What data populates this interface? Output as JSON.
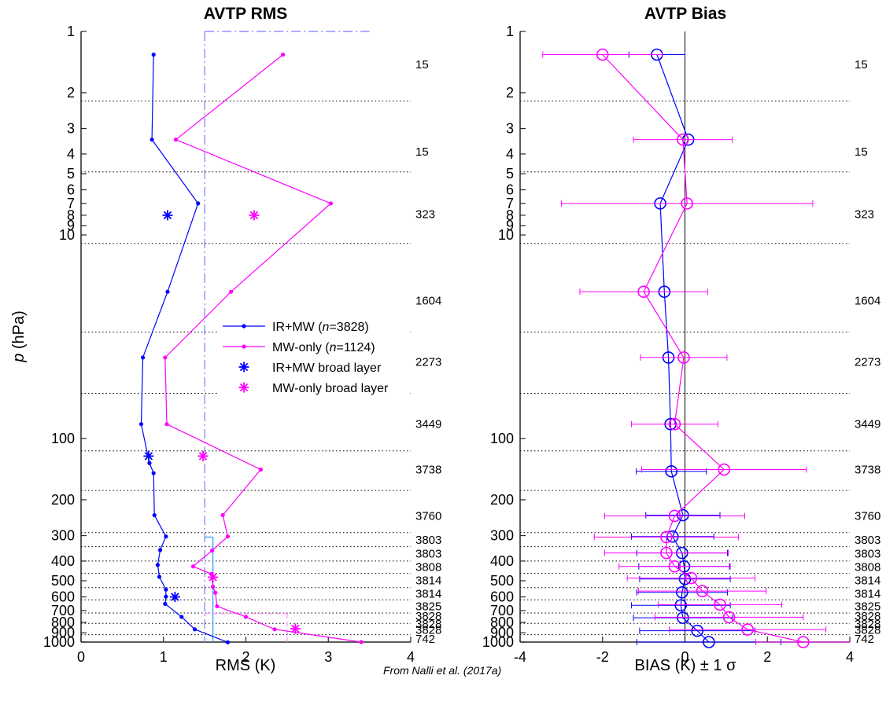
{
  "figure": {
    "credit": "From Nalli et al. (2017a)",
    "ylabel": "p (hPa)",
    "ylabel_italic": "p",
    "ylabel_rest": " (hPa)"
  },
  "chart_data": [
    {
      "type": "line",
      "title": "AVTP RMS",
      "xlabel": "RMS (K)",
      "ylabel": "p (hPa)",
      "xlim": [
        0,
        4
      ],
      "ylim": [
        1000,
        1
      ],
      "yscale": "log",
      "xticks": [
        "0",
        "1",
        "2",
        "3",
        "4"
      ],
      "yticks": [
        "1",
        "2",
        "3",
        "4",
        "5",
        "6",
        "7",
        "8",
        "9",
        "10",
        "100",
        "200",
        "300",
        "400",
        "500",
        "600",
        "700",
        "800",
        "900",
        "1000"
      ],
      "layer_boundaries": [
        2.2,
        4.9,
        11,
        30,
        60,
        115,
        180,
        290,
        340,
        400,
        460,
        540,
        620,
        720,
        810,
        920
      ],
      "layer_counts": [
        {
          "p": 1.45,
          "n": "15"
        },
        {
          "p": 3.9,
          "n": "15"
        },
        {
          "p": 7.9,
          "n": "323"
        },
        {
          "p": 21,
          "n": "1604"
        },
        {
          "p": 42,
          "n": "2273"
        },
        {
          "p": 85,
          "n": "3449"
        },
        {
          "p": 142,
          "n": "3738"
        },
        {
          "p": 240,
          "n": "3760"
        },
        {
          "p": 315,
          "n": "3803"
        },
        {
          "p": 368,
          "n": "3803"
        },
        {
          "p": 428,
          "n": "3808"
        },
        {
          "p": 498,
          "n": "3814"
        },
        {
          "p": 578,
          "n": "3814"
        },
        {
          "p": 668,
          "n": "3825"
        },
        {
          "p": 745,
          "n": "3828"
        },
        {
          "p": 815,
          "n": "3828"
        },
        {
          "p": 870,
          "n": "3828"
        },
        {
          "p": 965,
          "n": "742"
        }
      ],
      "series": [
        {
          "name": "IR+MW (n=3828)",
          "color": "#0000ff",
          "marker": "dot",
          "points": [
            [
              0.88,
              1.3
            ],
            [
              0.86,
              3.4
            ],
            [
              1.42,
              7.0
            ],
            [
              1.05,
              19
            ],
            [
              0.75,
              40
            ],
            [
              0.73,
              85
            ],
            [
              0.83,
              132
            ],
            [
              0.88,
              148
            ],
            [
              0.89,
              238
            ],
            [
              1.03,
              303
            ],
            [
              0.96,
              353
            ],
            [
              0.93,
              418
            ],
            [
              0.95,
              478
            ],
            [
              1.03,
              552
            ],
            [
              1.03,
              598
            ],
            [
              1.02,
              649
            ],
            [
              1.22,
              752
            ],
            [
              1.38,
              866
            ],
            [
              1.78,
              1003
            ]
          ]
        },
        {
          "name": "MW-only (n=1124)",
          "color": "#ff00ff",
          "marker": "dot",
          "points": [
            [
              2.45,
              1.3
            ],
            [
              1.15,
              3.4
            ],
            [
              3.03,
              7.0
            ],
            [
              1.82,
              19
            ],
            [
              1.02,
              40
            ],
            [
              1.04,
              85
            ],
            [
              2.18,
              142
            ],
            [
              1.72,
              238
            ],
            [
              1.78,
              303
            ],
            [
              1.59,
              355
            ],
            [
              1.36,
              425
            ],
            [
              1.58,
              463
            ],
            [
              1.6,
              535
            ],
            [
              1.63,
              572
            ],
            [
              1.65,
              667
            ],
            [
              2.0,
              752
            ],
            [
              2.35,
              866
            ],
            [
              3.4,
              1000
            ]
          ]
        },
        {
          "name": "IR+MW broad layer",
          "color": "#0000ff",
          "marker": "asterisk",
          "points": [
            [
              1.05,
              8.0
            ],
            [
              0.82,
              122
            ],
            [
              1.14,
              600
            ]
          ]
        },
        {
          "name": "MW-only broad layer",
          "color": "#ff00ff",
          "marker": "asterisk",
          "points": [
            [
              2.1,
              8.0
            ],
            [
              1.48,
              122
            ],
            [
              1.6,
              480
            ],
            [
              2.6,
              860
            ]
          ]
        }
      ],
      "reference_lines": [
        {
          "color": "#8f8fff",
          "style": "dash-dot",
          "x": 1.5,
          "from_p": 1.0,
          "to_p": 1000
        },
        {
          "color": "#8f8fff",
          "style": "dash-dot",
          "x_from": 1.5,
          "x_to": 3.5,
          "p": 1.0
        },
        {
          "color": "#3da8ff",
          "style": "solid",
          "x": 1.6,
          "from_p": 305,
          "to_p": 1000
        },
        {
          "color": "#3da8ff",
          "style": "solid",
          "x_from": 1.5,
          "x_to": 1.6,
          "p": 305
        },
        {
          "color": "#ff99ff",
          "style": "dashed",
          "x_from": 1.5,
          "x_to": 2.5,
          "p": 725
        },
        {
          "color": "#ff99ff",
          "style": "dashed",
          "x": 2.5,
          "from_p": 725,
          "to_p": 1000
        }
      ],
      "legend": {
        "placement": "center-right"
      }
    },
    {
      "type": "line",
      "title": "AVTP Bias",
      "xlabel": "BIAS (K) ± 1 σ",
      "ylabel": "p (hPa)",
      "xlim": [
        -4,
        4
      ],
      "ylim": [
        1000,
        1
      ],
      "yscale": "log",
      "xticks": [
        "-4",
        "-2",
        "0",
        "2",
        "4"
      ],
      "yticks": [
        "1",
        "2",
        "3",
        "4",
        "5",
        "6",
        "7",
        "8",
        "9",
        "10",
        "100",
        "200",
        "300",
        "400",
        "500",
        "600",
        "700",
        "800",
        "900",
        "1000"
      ],
      "zero_line": 0,
      "series": [
        {
          "name": "IR+MW",
          "color": "#0000ff",
          "marker": "circle",
          "points": [
            {
              "x": -0.68,
              "p": 1.3,
              "err": 0.68
            },
            {
              "x": 0.08,
              "p": 3.4,
              "err": 0
            },
            {
              "x": -0.6,
              "p": 7.0,
              "err": 0
            },
            {
              "x": -0.5,
              "p": 19,
              "err": 0
            },
            {
              "x": -0.4,
              "p": 40,
              "err": 0
            },
            {
              "x": -0.35,
              "p": 85,
              "err": 0
            },
            {
              "x": -0.33,
              "p": 145,
              "err": 0.85
            },
            {
              "x": -0.05,
              "p": 238,
              "err": 0.9
            },
            {
              "x": -0.3,
              "p": 303,
              "err": 1.0
            },
            {
              "x": -0.07,
              "p": 365,
              "err": 1.1
            },
            {
              "x": -0.02,
              "p": 425,
              "err": 1.1
            },
            {
              "x": 0.0,
              "p": 490,
              "err": 1.1
            },
            {
              "x": -0.07,
              "p": 570,
              "err": 1.1
            },
            {
              "x": -0.1,
              "p": 660,
              "err": 1.2
            },
            {
              "x": -0.05,
              "p": 760,
              "err": 1.2
            },
            {
              "x": 0.3,
              "p": 880,
              "err": 1.4
            },
            {
              "x": 0.58,
              "p": 1000,
              "err": 1.75
            }
          ]
        },
        {
          "name": "MW-only",
          "color": "#ff00ff",
          "marker": "circle",
          "points": [
            {
              "x": -2.0,
              "p": 1.3,
              "err": 1.45
            },
            {
              "x": -0.05,
              "p": 3.4,
              "err": 1.2
            },
            {
              "x": 0.05,
              "p": 7.0,
              "err": 3.05
            },
            {
              "x": -1.0,
              "p": 19,
              "err": 1.55
            },
            {
              "x": -0.03,
              "p": 40,
              "err": 1.05
            },
            {
              "x": -0.25,
              "p": 85,
              "err": 1.05
            },
            {
              "x": 0.95,
              "p": 142,
              "err": 2.0
            },
            {
              "x": -0.25,
              "p": 240,
              "err": 1.7
            },
            {
              "x": -0.45,
              "p": 305,
              "err": 1.75
            },
            {
              "x": -0.45,
              "p": 365,
              "err": 1.5
            },
            {
              "x": -0.25,
              "p": 425,
              "err": 1.35
            },
            {
              "x": 0.15,
              "p": 485,
              "err": 1.55
            },
            {
              "x": 0.42,
              "p": 562,
              "err": 1.55
            },
            {
              "x": 0.85,
              "p": 655,
              "err": 1.5
            },
            {
              "x": 1.07,
              "p": 755,
              "err": 1.8
            },
            {
              "x": 1.52,
              "p": 868,
              "err": 1.9
            },
            {
              "x": 2.87,
              "p": 1000,
              "err": 1.15
            }
          ]
        }
      ]
    }
  ]
}
